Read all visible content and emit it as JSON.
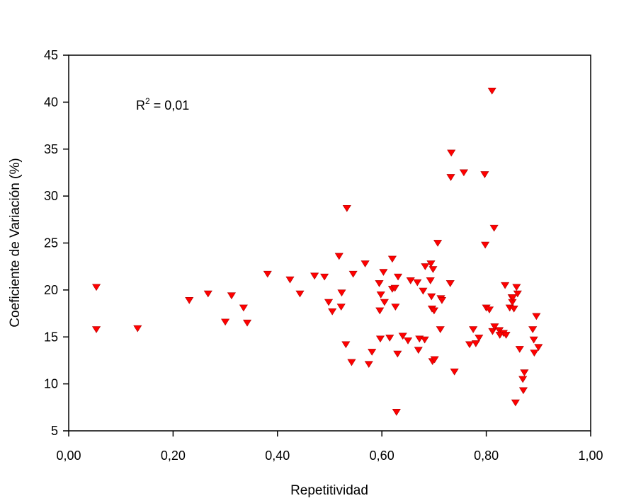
{
  "chart_data": {
    "type": "scatter",
    "xlabel": "Repetitividad",
    "ylabel": "Coeficiente de Variación (%)",
    "xlim": [
      0,
      1
    ],
    "ylim": [
      5,
      45
    ],
    "x_ticks": [
      "0,00",
      "0,20",
      "0,40",
      "0,60",
      "0,80",
      "1,00"
    ],
    "y_ticks": [
      "5",
      "10",
      "15",
      "20",
      "25",
      "30",
      "35",
      "40",
      "45"
    ],
    "annotation": {
      "base": "R",
      "superscript": "2",
      "text": " = 0,01"
    },
    "marker": "triangle-down",
    "color": "#ff0000",
    "points": [
      [
        0.053,
        20.3
      ],
      [
        0.053,
        15.8
      ],
      [
        0.132,
        15.9
      ],
      [
        0.231,
        18.9
      ],
      [
        0.267,
        19.6
      ],
      [
        0.3,
        16.6
      ],
      [
        0.312,
        19.4
      ],
      [
        0.335,
        18.1
      ],
      [
        0.342,
        16.5
      ],
      [
        0.381,
        21.7
      ],
      [
        0.424,
        21.1
      ],
      [
        0.443,
        19.6
      ],
      [
        0.471,
        21.5
      ],
      [
        0.49,
        21.4
      ],
      [
        0.498,
        18.7
      ],
      [
        0.505,
        17.7
      ],
      [
        0.518,
        23.6
      ],
      [
        0.522,
        18.2
      ],
      [
        0.523,
        19.7
      ],
      [
        0.531,
        14.2
      ],
      [
        0.533,
        28.7
      ],
      [
        0.542,
        12.3
      ],
      [
        0.545,
        21.7
      ],
      [
        0.568,
        22.8
      ],
      [
        0.575,
        12.1
      ],
      [
        0.581,
        13.4
      ],
      [
        0.595,
        20.7
      ],
      [
        0.596,
        17.8
      ],
      [
        0.597,
        14.8
      ],
      [
        0.598,
        19.5
      ],
      [
        0.603,
        21.9
      ],
      [
        0.605,
        18.7
      ],
      [
        0.615,
        14.9
      ],
      [
        0.62,
        23.3
      ],
      [
        0.62,
        20.1
      ],
      [
        0.625,
        20.2
      ],
      [
        0.626,
        18.2
      ],
      [
        0.628,
        7.0
      ],
      [
        0.63,
        13.2
      ],
      [
        0.631,
        21.4
      ],
      [
        0.64,
        15.1
      ],
      [
        0.65,
        14.6
      ],
      [
        0.655,
        21.0
      ],
      [
        0.668,
        20.8
      ],
      [
        0.67,
        13.6
      ],
      [
        0.672,
        14.8
      ],
      [
        0.679,
        19.9
      ],
      [
        0.682,
        14.7
      ],
      [
        0.683,
        22.5
      ],
      [
        0.693,
        21.0
      ],
      [
        0.694,
        22.8
      ],
      [
        0.695,
        19.3
      ],
      [
        0.696,
        18.0
      ],
      [
        0.697,
        12.4
      ],
      [
        0.698,
        22.2
      ],
      [
        0.7,
        17.8
      ],
      [
        0.701,
        12.6
      ],
      [
        0.707,
        25.0
      ],
      [
        0.712,
        15.8
      ],
      [
        0.713,
        19.1
      ],
      [
        0.715,
        18.9
      ],
      [
        0.731,
        20.7
      ],
      [
        0.732,
        32.0
      ],
      [
        0.733,
        34.6
      ],
      [
        0.739,
        11.3
      ],
      [
        0.757,
        32.5
      ],
      [
        0.768,
        14.2
      ],
      [
        0.775,
        15.8
      ],
      [
        0.78,
        14.3
      ],
      [
        0.786,
        14.9
      ],
      [
        0.797,
        32.3
      ],
      [
        0.798,
        24.8
      ],
      [
        0.8,
        18.1
      ],
      [
        0.806,
        17.9
      ],
      [
        0.811,
        41.2
      ],
      [
        0.812,
        15.6
      ],
      [
        0.815,
        26.6
      ],
      [
        0.816,
        16.1
      ],
      [
        0.825,
        15.7
      ],
      [
        0.826,
        15.2
      ],
      [
        0.833,
        15.4
      ],
      [
        0.836,
        20.5
      ],
      [
        0.838,
        15.2
      ],
      [
        0.845,
        18.1
      ],
      [
        0.849,
        19.2
      ],
      [
        0.85,
        18.7
      ],
      [
        0.851,
        19.2
      ],
      [
        0.853,
        18.0
      ],
      [
        0.856,
        8.0
      ],
      [
        0.858,
        20.3
      ],
      [
        0.86,
        19.6
      ],
      [
        0.864,
        13.7
      ],
      [
        0.87,
        10.5
      ],
      [
        0.871,
        9.3
      ],
      [
        0.873,
        11.2
      ],
      [
        0.889,
        15.8
      ],
      [
        0.891,
        14.7
      ],
      [
        0.892,
        13.3
      ],
      [
        0.896,
        17.2
      ],
      [
        0.9,
        13.9
      ]
    ]
  }
}
